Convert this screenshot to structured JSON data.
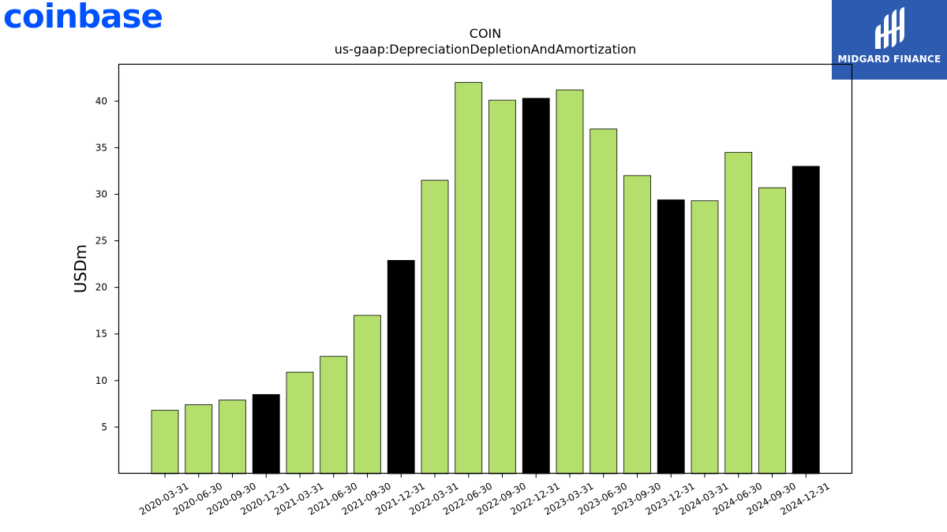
{
  "logos": {
    "left_text": "coinbase",
    "right_text": "MIDGARD FINANCE",
    "left_color": "#0052ff",
    "right_bg": "#2c5bb0"
  },
  "chart_data": {
    "type": "bar",
    "title": "COIN",
    "subtitle": "us-gaap:DepreciationDepletionAndAmortization",
    "xlabel": "",
    "ylabel": "USDm",
    "ylim": [
      0,
      44
    ],
    "yticks": [
      5,
      10,
      15,
      20,
      25,
      30,
      35,
      40
    ],
    "grid": false,
    "colors": {
      "quarter": "#b5df6c",
      "year_end": "#000000",
      "edge": "#000000"
    },
    "categories": [
      "2020-03-31",
      "2020-06-30",
      "2020-09-30",
      "2020-12-31",
      "2021-03-31",
      "2021-06-30",
      "2021-09-30",
      "2021-12-31",
      "2022-03-31",
      "2022-06-30",
      "2022-09-30",
      "2022-12-31",
      "2023-03-31",
      "2023-06-30",
      "2023-09-30",
      "2023-12-31",
      "2024-03-31",
      "2024-06-30",
      "2024-09-30",
      "2024-12-31"
    ],
    "values": [
      6.8,
      7.4,
      7.9,
      8.5,
      10.9,
      12.6,
      17.0,
      22.9,
      31.5,
      42.0,
      40.1,
      40.3,
      41.2,
      37.0,
      32.0,
      29.4,
      29.3,
      34.5,
      30.7,
      33.0
    ],
    "year_end": [
      false,
      false,
      false,
      true,
      false,
      false,
      false,
      true,
      false,
      false,
      false,
      true,
      false,
      false,
      false,
      true,
      false,
      false,
      false,
      true
    ]
  }
}
